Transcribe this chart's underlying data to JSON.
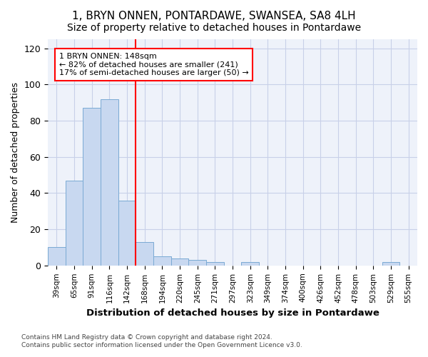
{
  "title": "1, BRYN ONNEN, PONTARDAWE, SWANSEA, SA8 4LH",
  "subtitle": "Size of property relative to detached houses in Pontardawe",
  "xlabel": "Distribution of detached houses by size in Pontardawe",
  "ylabel": "Number of detached properties",
  "bins": [
    "39sqm",
    "65sqm",
    "91sqm",
    "116sqm",
    "142sqm",
    "168sqm",
    "194sqm",
    "220sqm",
    "245sqm",
    "271sqm",
    "297sqm",
    "323sqm",
    "349sqm",
    "374sqm",
    "400sqm",
    "426sqm",
    "452sqm",
    "478sqm",
    "503sqm",
    "529sqm",
    "555sqm"
  ],
  "values": [
    10,
    47,
    87,
    92,
    36,
    13,
    5,
    4,
    3,
    2,
    0,
    2,
    0,
    0,
    0,
    0,
    0,
    0,
    0,
    2,
    0
  ],
  "bar_color": "#c8d8f0",
  "bar_edge_color": "#7aaad4",
  "red_line_x": 4,
  "annotation_line1": "1 BRYN ONNEN: 148sqm",
  "annotation_line2": "← 82% of detached houses are smaller (241)",
  "annotation_line3": "17% of semi-detached houses are larger (50) →",
  "footer1": "Contains HM Land Registry data © Crown copyright and database right 2024.",
  "footer2": "Contains public sector information licensed under the Open Government Licence v3.0.",
  "ylim": [
    0,
    125
  ],
  "yticks": [
    0,
    20,
    40,
    60,
    80,
    100,
    120
  ],
  "background_color": "#ffffff",
  "plot_bg_color": "#eef2fa",
  "grid_color": "#c8d0e8",
  "title_fontsize": 11,
  "subtitle_fontsize": 10
}
